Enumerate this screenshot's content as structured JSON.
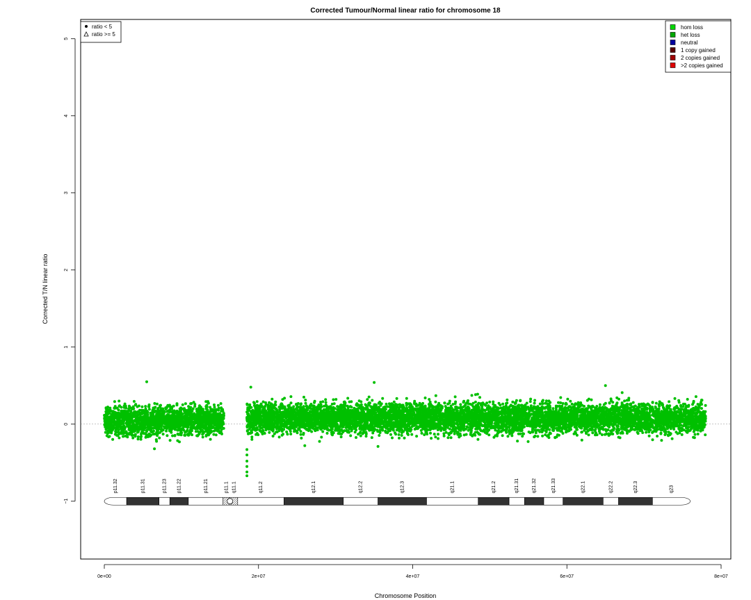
{
  "chart_data": {
    "type": "scatter",
    "title": "Corrected Tumour/Normal linear ratio for chromosome  18",
    "xlabel": "Chromosome Position",
    "ylabel": "Corrected T/N linear ratio",
    "xlim": [
      0,
      80000000
    ],
    "ylim": [
      -1.75,
      5.25
    ],
    "x_ticks": [
      0,
      20000000,
      40000000,
      60000000,
      80000000
    ],
    "x_tick_labels": [
      "0e+00",
      "2e+07",
      "4e+07",
      "6e+07",
      "8e+07"
    ],
    "y_ticks": [
      -1,
      0,
      1,
      2,
      3,
      4,
      5
    ],
    "y_tick_labels": [
      "−1",
      "0",
      "1",
      "2",
      "3",
      "4",
      "5"
    ],
    "reference_line_y": 0,
    "grid": false,
    "point_color": "#00c000",
    "point_density_per_mb": 120,
    "series": [
      {
        "segments": [
          {
            "x_start": 0,
            "x_end": 15500000,
            "mean": 0.05,
            "spread": 0.12
          },
          {
            "x_start": 18500000,
            "x_end": 78000000,
            "mean": 0.08,
            "spread": 0.12
          }
        ],
        "outliers": [
          {
            "x": 5500000,
            "y": 0.55
          },
          {
            "x": 35000000,
            "y": 0.54
          },
          {
            "x": 65000000,
            "y": 0.5
          },
          {
            "x": 19000000,
            "y": 0.48
          },
          {
            "x": 6500000,
            "y": -0.32
          },
          {
            "x": 18500000,
            "y": -0.4
          },
          {
            "x": 18500000,
            "y": -0.48
          },
          {
            "x": 18500000,
            "y": -0.55
          },
          {
            "x": 18500000,
            "y": -0.62
          },
          {
            "x": 18500000,
            "y": -0.67
          },
          {
            "x": 18500000,
            "y": -0.33
          },
          {
            "x": 35500000,
            "y": -0.29
          },
          {
            "x": 26000000,
            "y": -0.28
          }
        ]
      }
    ],
    "legend_shape": {
      "position": "top-left",
      "entries": [
        {
          "label": "ratio < 5",
          "marker": "circle"
        },
        {
          "label": "ratio >= 5",
          "marker": "triangle"
        }
      ]
    },
    "legend_status": {
      "position": "top-right",
      "entries": [
        {
          "label": "hom loss",
          "color": "#00d800"
        },
        {
          "label": "het loss",
          "color": "#00a800"
        },
        {
          "label": "neutral",
          "color": "#0000a0"
        },
        {
          "label": "1 copy gained",
          "color": "#5a0000"
        },
        {
          "label": "2 copies gained",
          "color": "#a00000"
        },
        {
          "label": ">2 copies gained",
          "color": "#e00000"
        }
      ]
    },
    "ideogram": {
      "y": -1,
      "x_start": 0,
      "x_end": 76000000,
      "centromere": 16300000,
      "bands": [
        {
          "name": "p11.32",
          "start": 0,
          "end": 2900000,
          "stain": "gneg"
        },
        {
          "name": "p11.31",
          "start": 2900000,
          "end": 7100000,
          "stain": "gpos"
        },
        {
          "name": "p11.23",
          "start": 7100000,
          "end": 8500000,
          "stain": "gneg"
        },
        {
          "name": "p11.22",
          "start": 8500000,
          "end": 10900000,
          "stain": "gpos"
        },
        {
          "name": "p11.21",
          "start": 10900000,
          "end": 15400000,
          "stain": "gneg"
        },
        {
          "name": "p11.1",
          "start": 15400000,
          "end": 16300000,
          "stain": "acen"
        },
        {
          "name": "q11.1",
          "start": 16300000,
          "end": 17300000,
          "stain": "acen"
        },
        {
          "name": "q11.2",
          "start": 17300000,
          "end": 23300000,
          "stain": "gneg"
        },
        {
          "name": "q12.1",
          "start": 23300000,
          "end": 31000000,
          "stain": "gpos"
        },
        {
          "name": "q12.2",
          "start": 31000000,
          "end": 35500000,
          "stain": "gneg"
        },
        {
          "name": "q12.3",
          "start": 35500000,
          "end": 41800000,
          "stain": "gpos"
        },
        {
          "name": "q21.1",
          "start": 41800000,
          "end": 48500000,
          "stain": "gneg"
        },
        {
          "name": "q21.2",
          "start": 48500000,
          "end": 52500000,
          "stain": "gpos"
        },
        {
          "name": "q21.31",
          "start": 52500000,
          "end": 54500000,
          "stain": "gneg"
        },
        {
          "name": "q21.32",
          "start": 54500000,
          "end": 57000000,
          "stain": "gpos"
        },
        {
          "name": "q21.33",
          "start": 57000000,
          "end": 59500000,
          "stain": "gneg"
        },
        {
          "name": "q22.1",
          "start": 59500000,
          "end": 64700000,
          "stain": "gpos"
        },
        {
          "name": "q22.2",
          "start": 64700000,
          "end": 66700000,
          "stain": "gneg"
        },
        {
          "name": "q22.3",
          "start": 66700000,
          "end": 71100000,
          "stain": "gpos"
        },
        {
          "name": "q23",
          "start": 71100000,
          "end": 76000000,
          "stain": "gneg"
        }
      ]
    }
  }
}
